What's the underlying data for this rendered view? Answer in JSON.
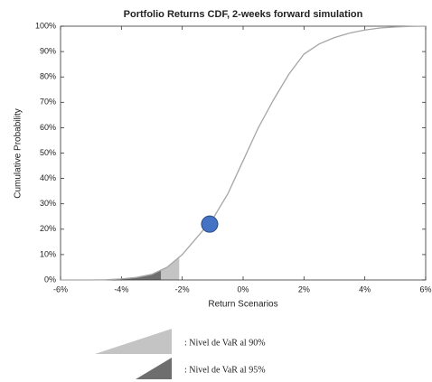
{
  "chart_data": {
    "type": "line",
    "title": "Portfolio Returns CDF, 2-weeks forward simulation",
    "xlabel": "Return Scenarios",
    "ylabel": "Cumulative Probability",
    "x": [
      -6,
      -5.5,
      -5,
      -4.5,
      -4,
      -3.5,
      -3,
      -2.5,
      -2,
      -1.5,
      -1,
      -0.5,
      0,
      0.5,
      1,
      1.5,
      2,
      2.5,
      3,
      3.5,
      4,
      4.5,
      5,
      5.5,
      6
    ],
    "series": [
      {
        "color": "#a6a6a6",
        "values": [
          0,
          0,
          0,
          0.1,
          0.4,
          1,
          2.2,
          5,
          10,
          17,
          24,
          34,
          47,
          60,
          71,
          81,
          89,
          93,
          95.5,
          97.3,
          98.5,
          99.3,
          99.7,
          99.9,
          100
        ]
      }
    ],
    "xlim": [
      -6,
      6
    ],
    "xticks": [
      {
        "value": -6,
        "label": "-6%"
      },
      {
        "value": -4,
        "label": "-4%"
      },
      {
        "value": -2,
        "label": "-2%"
      },
      {
        "value": 0,
        "label": "0%"
      },
      {
        "value": 2,
        "label": "2%"
      },
      {
        "value": 4,
        "label": "4%"
      },
      {
        "value": 6,
        "label": "6%"
      }
    ],
    "ylim": [
      0,
      100
    ],
    "yticks": [
      {
        "value": 0,
        "label": "0%"
      },
      {
        "value": 10,
        "label": "10%"
      },
      {
        "value": 20,
        "label": "20%"
      },
      {
        "value": 30,
        "label": "30%"
      },
      {
        "value": 40,
        "label": "40%"
      },
      {
        "value": 50,
        "label": "50%"
      },
      {
        "value": 60,
        "label": "60%"
      },
      {
        "value": 70,
        "label": "70%"
      },
      {
        "value": 80,
        "label": "80%"
      },
      {
        "value": 90,
        "label": "90%"
      },
      {
        "value": 100,
        "label": "100%"
      }
    ],
    "regions": [
      {
        "name": ": Nivel de VaR al 90%",
        "color": "#c4c4c4",
        "x": [
          -2.7,
          -2.1
        ]
      },
      {
        "name": ": Nivel de VaR al 95%",
        "color": "#6e6e6e",
        "x": [
          -4,
          -2.7
        ]
      }
    ],
    "marker": {
      "x": -1.1,
      "y": 22,
      "color": "#4472c4"
    }
  }
}
